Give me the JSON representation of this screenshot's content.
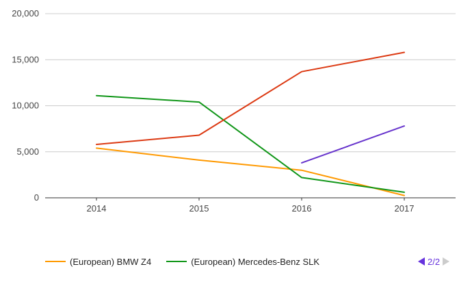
{
  "chart_data": {
    "type": "line",
    "x": [
      "2014",
      "2015",
      "2016",
      "2017"
    ],
    "ylim": [
      0,
      20000
    ],
    "yticks": [
      0,
      5000,
      10000,
      15000,
      20000
    ],
    "ytick_labels": [
      "0",
      "5,000",
      "10,000",
      "15,000",
      "20,000"
    ],
    "grid": true,
    "legend_position": "bottom-left",
    "series": [
      {
        "name": "(European) BMW Z4",
        "color": "#ff9900",
        "values": [
          5400,
          4100,
          3000,
          250
        ],
        "in_legend": true
      },
      {
        "name": "(European) Mercedes-Benz SLK",
        "color": "#109618",
        "values": [
          11100,
          10400,
          2200,
          600
        ],
        "in_legend": true
      },
      {
        "color": "#dc3912",
        "values": [
          5800,
          6800,
          13700,
          15800
        ],
        "in_legend": false
      },
      {
        "color": "#6633cc",
        "values": [
          null,
          null,
          3800,
          7800
        ],
        "in_legend": false
      }
    ]
  },
  "legend": {
    "items": [
      {
        "label": "(European) BMW Z4",
        "color": "#ff9900"
      },
      {
        "label": "(European) Mercedes-Benz SLK",
        "color": "#109618"
      }
    ],
    "pager_text": "2/2"
  }
}
